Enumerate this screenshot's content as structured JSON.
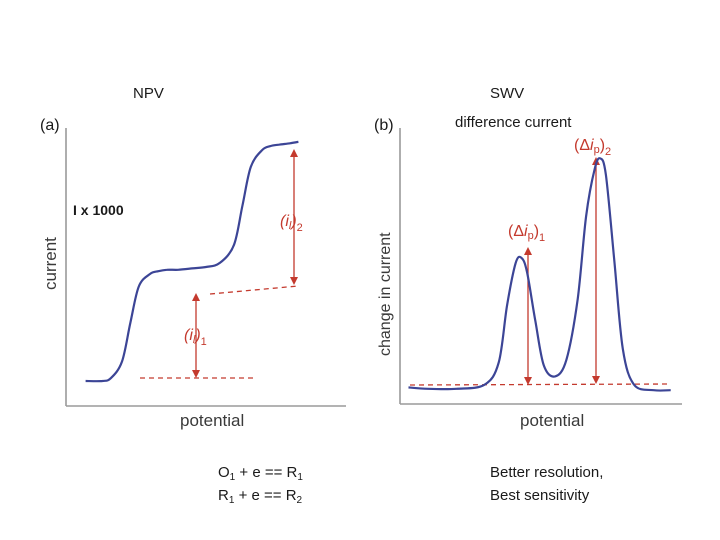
{
  "slide": {
    "npv_title": "NPV",
    "swv_title": "SWV",
    "swv_subtitle": "difference current",
    "scale_note": "I x 1000",
    "reactions": [
      {
        "ox": "O",
        "ox_sub": "1",
        "mid": " + e == ",
        "red": "R",
        "red_sub": "1"
      },
      {
        "ox": "R",
        "ox_sub": "1",
        "mid": " + e == ",
        "red": "R",
        "red_sub": "2"
      }
    ],
    "swv_notes": [
      "Better resolution,",
      "Best sensitivity"
    ]
  },
  "colors": {
    "curve": "#3c4596",
    "annotation": "#c43a2e",
    "axis": "#9a9a9a",
    "text": "#1a1a1a"
  },
  "chart_data": [
    {
      "type": "line",
      "panel_label": "(a)",
      "xlabel": "potential",
      "ylabel": "current",
      "x_range": [
        0,
        10
      ],
      "y_range": [
        0,
        10
      ],
      "series": [
        {
          "x": [
            0.7,
            1.3,
            1.6,
            2.0,
            2.3,
            2.6,
            3.0,
            3.3,
            3.6,
            4.0,
            4.5,
            5.0,
            5.5,
            6.0,
            6.3,
            6.6,
            7.0,
            7.3,
            7.6,
            8.0,
            8.3
          ],
          "y": [
            0.9,
            0.9,
            1.0,
            1.6,
            3.0,
            4.3,
            4.75,
            4.85,
            4.9,
            4.9,
            4.95,
            5.0,
            5.15,
            5.8,
            7.2,
            8.6,
            9.2,
            9.35,
            9.4,
            9.45,
            9.5
          ]
        }
      ],
      "annotations": [
        "(i_l)_1",
        "(i_l)_2"
      ]
    },
    {
      "type": "line",
      "panel_label": "(b)",
      "xlabel": "potential",
      "ylabel": "change in current",
      "x_range": [
        0,
        10
      ],
      "y_range": [
        0,
        10
      ],
      "series": [
        {
          "x": [
            0.3,
            1.0,
            2.0,
            3.0,
            3.5,
            3.8,
            4.1,
            4.3,
            4.5,
            4.8,
            5.1,
            5.5,
            5.9,
            6.3,
            6.6,
            6.9,
            7.1,
            7.3,
            7.6,
            7.9,
            8.3,
            9.0,
            9.6
          ],
          "y": [
            0.6,
            0.55,
            0.55,
            0.7,
            1.5,
            3.6,
            5.1,
            5.3,
            4.8,
            3.0,
            1.4,
            1.0,
            1.6,
            3.8,
            6.8,
            8.5,
            8.9,
            8.3,
            5.2,
            2.0,
            0.7,
            0.5,
            0.5
          ]
        }
      ],
      "annotations": [
        "(Δi_p)_1",
        "(Δi_p)_2"
      ]
    }
  ]
}
